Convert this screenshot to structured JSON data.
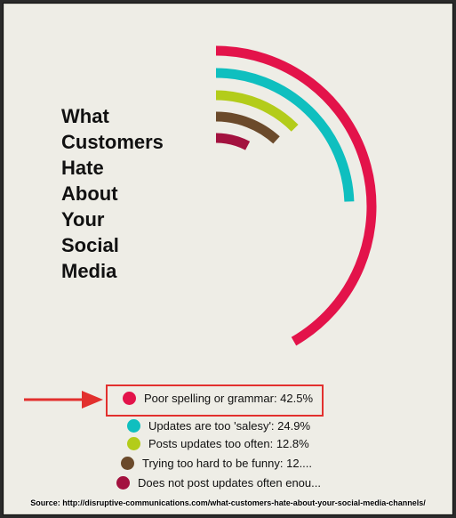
{
  "title_lines": [
    "What",
    "Customers",
    "Hate",
    "About",
    "Your",
    "Social",
    "Media"
  ],
  "chart_data": {
    "type": "radial-bar",
    "categories": [
      "Poor spelling or grammar",
      "Updates are too 'salesy'",
      "Posts updates too often",
      "Trying too hard to be funny",
      "Does not post updates often enough"
    ],
    "values": [
      42.5,
      24.9,
      12.8,
      12.0,
      7.8
    ],
    "colors": [
      "#e3134a",
      "#0fbfbf",
      "#b3cc1a",
      "#6b4a2b",
      "#a3123f"
    ],
    "legend_labels": [
      "Poor spelling or grammar: 42.5%",
      "Updates are too 'salesy': 24.9%",
      "Posts updates too often: 12.8%",
      "Trying too hard to be funny: 12....",
      "Does not post updates often enou..."
    ],
    "legend_placement": "bottom",
    "highlighted_category": "Poor spelling or grammar"
  },
  "annotation_arrow_color": "#e2302e",
  "source": "Source: http://disruptive-communications.com/what-customers-hate-about-your-social-media-channels/"
}
